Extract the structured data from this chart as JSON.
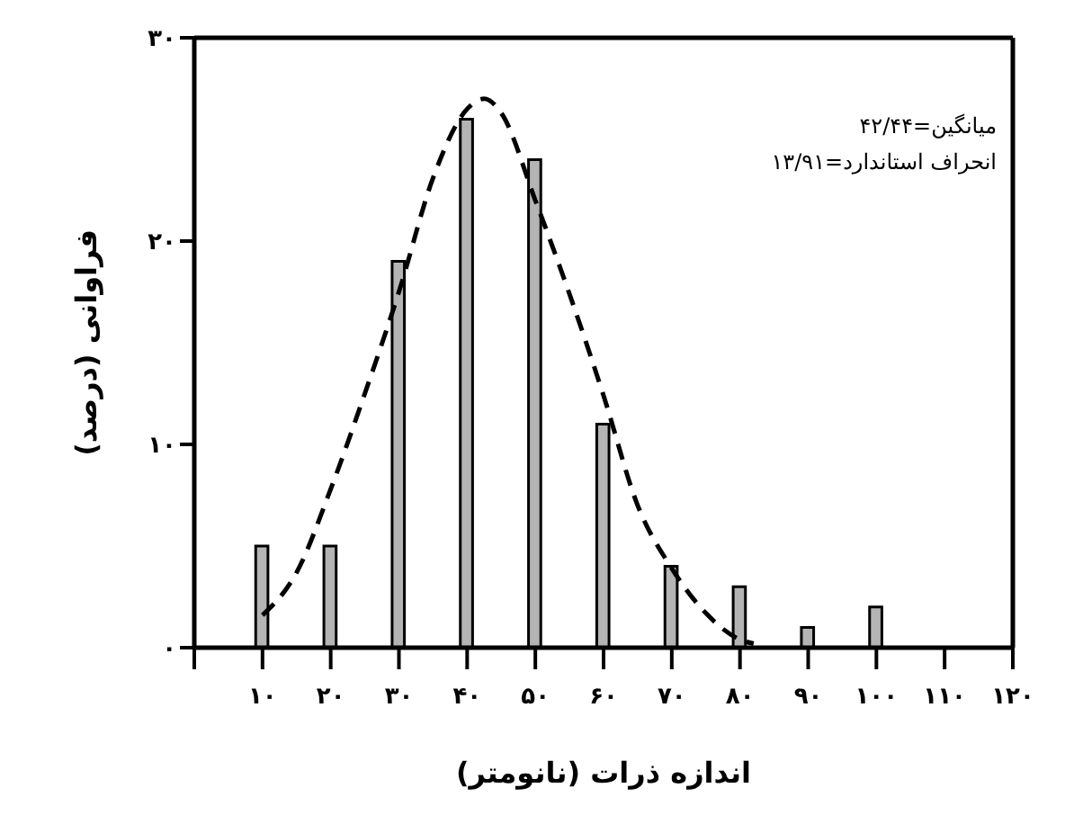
{
  "chart_data": {
    "type": "histogram",
    "xlabel": "اندازه ذرات (نانومتر)",
    "ylabel": "فراوانی (درصد)",
    "annotations": [
      "میانگین=۴۲/۴۴",
      "انحراف استاندارد=۱۳/۹۱"
    ],
    "bins": [
      5,
      15,
      25,
      35,
      45,
      55,
      65,
      75,
      85,
      95,
      105
    ],
    "values": [
      5,
      5,
      19,
      26,
      24,
      11,
      4,
      3,
      1,
      2
    ],
    "color": "#b4b4b4",
    "series": [
      {
        "type": "line",
        "color": "#000000",
        "x": [
          10,
          15,
          20,
          25,
          30,
          35,
          40,
          42.5,
          45,
          50,
          55,
          60,
          65,
          70,
          75,
          80,
          82
        ],
        "values": [
          1.6,
          3.7,
          7.8,
          12.5,
          17.5,
          23.1,
          26.5,
          27,
          26.3,
          22,
          17.4,
          12.4,
          7,
          3.9,
          1.7,
          0.4,
          0.2
        ]
      }
    ],
    "line_style": "dashed",
    "marker": "none",
    "xlim": [
      0,
      120
    ],
    "xticks": [
      {
        "value": 0,
        "label": null
      },
      {
        "value": 10,
        "label": "۱۰"
      },
      {
        "value": 20,
        "label": "۲۰"
      },
      {
        "value": 30,
        "label": "۳۰"
      },
      {
        "value": 40,
        "label": "۴۰"
      },
      {
        "value": 50,
        "label": "۵۰"
      },
      {
        "value": 60,
        "label": "۶۰"
      },
      {
        "value": 70,
        "label": "۷۰"
      },
      {
        "value": 80,
        "label": "۸۰"
      },
      {
        "value": 90,
        "label": "۹۰"
      },
      {
        "value": 100,
        "label": "۱۰۰"
      },
      {
        "value": 110,
        "label": "۱۱۰"
      },
      {
        "value": 120,
        "label": "۱۲۰"
      }
    ],
    "ylim": [
      0,
      30
    ],
    "yticks": [
      {
        "value": 0,
        "label": "۰"
      },
      {
        "value": 10,
        "label": "۱۰"
      },
      {
        "value": 20,
        "label": "۲۰"
      },
      {
        "value": 30,
        "label": "۳۰"
      }
    ]
  }
}
